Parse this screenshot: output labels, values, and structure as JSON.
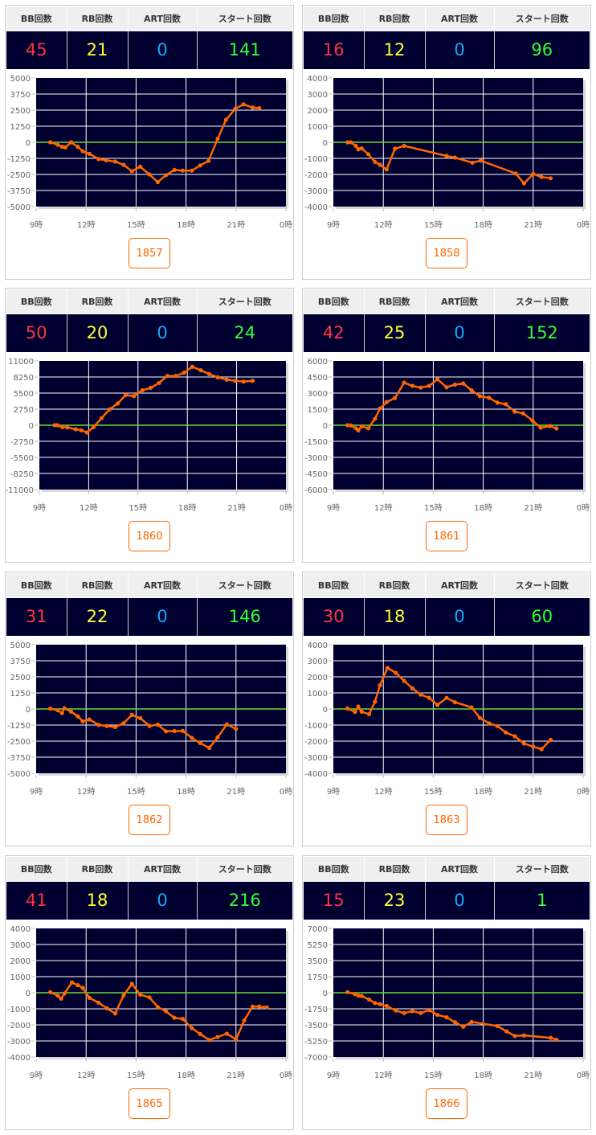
{
  "headers": {
    "bb": "BB回数",
    "rb": "RB回数",
    "art": "ART回数",
    "start": "スタート回数"
  },
  "colors": {
    "bb": "#ff3344",
    "rb": "#ffff33",
    "art": "#11aaff",
    "start": "#33ff33",
    "line": "#ff6600",
    "zero": "#66dd33",
    "plot_bg": "#000030"
  },
  "x_ticks": [
    "9時",
    "12時",
    "15時",
    "18時",
    "21時",
    "0時"
  ],
  "machines": [
    {
      "number": "1857",
      "bb": "45",
      "rb": "21",
      "art": "0",
      "start": "141",
      "chart_data": {
        "type": "line",
        "xlabel": "",
        "ylabel": "",
        "xlim": [
          9,
          24
        ],
        "ylim": [
          -5000,
          5000
        ],
        "y_ticks": [
          "5000",
          "3750",
          "2500",
          "1250",
          "0",
          "-1250",
          "-2500",
          "-3750",
          "-5000"
        ],
        "x": [
          9.85,
          10.3,
          10.55,
          10.75,
          11.1,
          11.5,
          11.8,
          12.2,
          12.75,
          13.2,
          13.75,
          14.25,
          14.75,
          15.25,
          15.8,
          16.3,
          16.8,
          17.3,
          17.8,
          18.35,
          18.85,
          19.35,
          19.9,
          20.4,
          20.95,
          21.45,
          22,
          22.4
        ],
        "y": [
          0,
          -200,
          -350,
          -400,
          0,
          -350,
          -700,
          -900,
          -1300,
          -1400,
          -1500,
          -1750,
          -2250,
          -1900,
          -2500,
          -3100,
          -2550,
          -2150,
          -2200,
          -2200,
          -1800,
          -1450,
          270,
          1750,
          2600,
          2950,
          2700,
          2650
        ]
      }
    },
    {
      "number": "1858",
      "bb": "16",
      "rb": "12",
      "art": "0",
      "start": "96",
      "chart_data": {
        "type": "line",
        "xlabel": "",
        "ylabel": "",
        "xlim": [
          9,
          24
        ],
        "ylim": [
          -4000,
          4000
        ],
        "y_ticks": [
          "4000",
          "3000",
          "2000",
          "1000",
          "0",
          "-1000",
          "-2000",
          "-3000",
          "-4000"
        ],
        "x": [
          9.85,
          10.05,
          10.35,
          10.5,
          10.7,
          11.1,
          11.5,
          11.8,
          12.2,
          12.7,
          13.25,
          15.8,
          16.3,
          17.35,
          17.85,
          19.95,
          20.45,
          21,
          21.5,
          22.05
        ],
        "y": [
          0,
          0,
          -220,
          -430,
          -380,
          -740,
          -1220,
          -1400,
          -1690,
          -400,
          -220,
          -850,
          -950,
          -1270,
          -1140,
          -1940,
          -2560,
          -1970,
          -2160,
          -2240
        ]
      }
    },
    {
      "number": "1860",
      "bb": "50",
      "rb": "20",
      "art": "0",
      "start": "24",
      "chart_data": {
        "type": "line",
        "xlabel": "",
        "ylabel": "",
        "xlim": [
          9,
          24
        ],
        "ylim": [
          -11000,
          11000
        ],
        "y_ticks": [
          "11000",
          "8250",
          "5500",
          "2750",
          "0",
          "-2750",
          "-5500",
          "-8250",
          "-11000"
        ],
        "x": [
          9.93,
          10.1,
          10.4,
          10.7,
          11.2,
          11.55,
          11.9,
          12.3,
          12.78,
          13.27,
          13.77,
          14.25,
          14.75,
          15.27,
          15.77,
          16.28,
          16.78,
          17.3,
          17.8,
          18.3,
          18.82,
          19.33,
          19.85,
          20.4,
          20.92,
          21.42,
          21.97
        ],
        "y": [
          0,
          0,
          -320,
          -370,
          -690,
          -870,
          -1240,
          -320,
          1200,
          2720,
          3730,
          5160,
          4980,
          5990,
          6400,
          7230,
          8430,
          8430,
          8990,
          10000,
          9400,
          8760,
          8200,
          7790,
          7600,
          7460,
          7600
        ]
      }
    },
    {
      "number": "1861",
      "bb": "42",
      "rb": "25",
      "art": "0",
      "start": "152",
      "chart_data": {
        "type": "line",
        "xlabel": "",
        "ylabel": "",
        "xlim": [
          9,
          24
        ],
        "ylim": [
          -6000,
          6000
        ],
        "y_ticks": [
          "6000",
          "4500",
          "3000",
          "1500",
          "0",
          "-1500",
          "-3000",
          "-4500",
          "-6000"
        ],
        "x": [
          9.85,
          10.05,
          10.35,
          10.5,
          10.7,
          11.1,
          11.5,
          11.8,
          12.2,
          12.7,
          13.25,
          13.75,
          14.25,
          14.75,
          15.25,
          15.8,
          16.3,
          16.8,
          17.3,
          17.8,
          18.35,
          18.85,
          19.35,
          19.9,
          20.4,
          20.95,
          21.45,
          22,
          22.4
        ],
        "y": [
          0,
          -25,
          -280,
          -480,
          -100,
          -280,
          600,
          1560,
          2160,
          2540,
          3970,
          3670,
          3510,
          3670,
          4290,
          3540,
          3790,
          3890,
          3260,
          2710,
          2560,
          2110,
          1960,
          1260,
          1100,
          450,
          -230,
          -75,
          -300
        ]
      }
    },
    {
      "number": "1862",
      "bb": "31",
      "rb": "22",
      "art": "0",
      "start": "146",
      "chart_data": {
        "type": "line",
        "xlabel": "",
        "ylabel": "",
        "xlim": [
          9,
          24
        ],
        "ylim": [
          -5000,
          5000
        ],
        "y_ticks": [
          "5000",
          "3750",
          "2500",
          "1250",
          "0",
          "-1250",
          "-2500",
          "-3750",
          "-5000"
        ],
        "x": [
          9.85,
          10.3,
          10.55,
          10.7,
          11.1,
          11.5,
          11.8,
          12.2,
          12.75,
          13.25,
          13.75,
          14.25,
          14.75,
          15.25,
          15.8,
          16.3,
          16.8,
          17.3,
          17.8,
          18.35,
          18.85,
          19.4,
          19.9,
          20.45,
          21
        ],
        "y": [
          30,
          -100,
          -320,
          60,
          -210,
          -570,
          -970,
          -820,
          -1240,
          -1320,
          -1410,
          -1110,
          -460,
          -710,
          -1320,
          -1220,
          -1740,
          -1720,
          -1700,
          -2250,
          -2650,
          -3030,
          -2200,
          -1200,
          -1550
        ]
      }
    },
    {
      "number": "1863",
      "bb": "30",
      "rb": "18",
      "art": "0",
      "start": "60",
      "chart_data": {
        "type": "line",
        "xlabel": "",
        "ylabel": "",
        "xlim": [
          9,
          24
        ],
        "ylim": [
          -4000,
          4000
        ],
        "y_ticks": [
          "4000",
          "3000",
          "2000",
          "1000",
          "0",
          "-1000",
          "-2000",
          "-3000",
          "-4000"
        ],
        "x": [
          9.85,
          10.3,
          10.5,
          10.7,
          11.15,
          11.5,
          11.8,
          12.25,
          12.75,
          13.25,
          13.75,
          14.25,
          14.75,
          15.25,
          15.8,
          16.3,
          17.3,
          17.8,
          18.35,
          18.85,
          19.35,
          19.9,
          20.45,
          21,
          21.5,
          22.05
        ],
        "y": [
          30,
          -180,
          150,
          -170,
          -320,
          450,
          1480,
          2550,
          2250,
          1750,
          1280,
          890,
          700,
          250,
          690,
          420,
          100,
          -560,
          -890,
          -1060,
          -1460,
          -1700,
          -2150,
          -2340,
          -2500,
          -1920
        ]
      }
    },
    {
      "number": "1865",
      "bb": "41",
      "rb": "18",
      "art": "0",
      "start": "216",
      "chart_data": {
        "type": "line",
        "xlabel": "",
        "ylabel": "",
        "xlim": [
          9,
          24
        ],
        "ylim": [
          -4000,
          4000
        ],
        "y_ticks": [
          "4000",
          "3000",
          "2000",
          "1000",
          "0",
          "-1000",
          "-2000",
          "-3000",
          "-4000"
        ],
        "x": [
          9.85,
          10.3,
          10.5,
          10.7,
          11.15,
          11.5,
          11.8,
          12.2,
          12.75,
          13.25,
          13.75,
          14.25,
          14.75,
          15.25,
          15.8,
          16.3,
          16.8,
          17.3,
          17.8,
          18.35,
          18.85,
          19.4,
          19.9,
          20.45,
          21,
          21.5,
          22,
          22.4,
          22.85
        ],
        "y": [
          30,
          -180,
          -370,
          -50,
          640,
          470,
          300,
          -320,
          -620,
          -970,
          -1290,
          -170,
          550,
          -120,
          -290,
          -890,
          -1160,
          -1560,
          -1630,
          -2200,
          -2570,
          -2940,
          -2750,
          -2550,
          -2900,
          -1710,
          -860,
          -860,
          -910
        ]
      }
    },
    {
      "number": "1866",
      "bb": "15",
      "rb": "23",
      "art": "0",
      "start": "1",
      "chart_data": {
        "type": "line",
        "xlabel": "",
        "ylabel": "",
        "xlim": [
          9,
          24
        ],
        "ylim": [
          -7000,
          7000
        ],
        "y_ticks": [
          "7000",
          "5250",
          "3500",
          "1750",
          "0",
          "-1750",
          "-3500",
          "-5250",
          "-7000"
        ],
        "x": [
          9.85,
          10.3,
          10.5,
          10.7,
          11.15,
          11.5,
          11.8,
          12.2,
          12.75,
          13.25,
          13.75,
          14.25,
          14.75,
          15.25,
          15.8,
          16.3,
          16.8,
          17.3,
          18.85,
          19.4,
          19.9,
          20.45,
          22.05,
          22.4
        ],
        "y": [
          60,
          -150,
          -320,
          -350,
          -740,
          -1120,
          -1240,
          -1440,
          -1940,
          -2210,
          -2000,
          -2210,
          -1880,
          -2410,
          -2680,
          -3200,
          -3700,
          -3180,
          -3620,
          -4210,
          -4710,
          -4650,
          -4910,
          -5120
        ]
      }
    }
  ]
}
